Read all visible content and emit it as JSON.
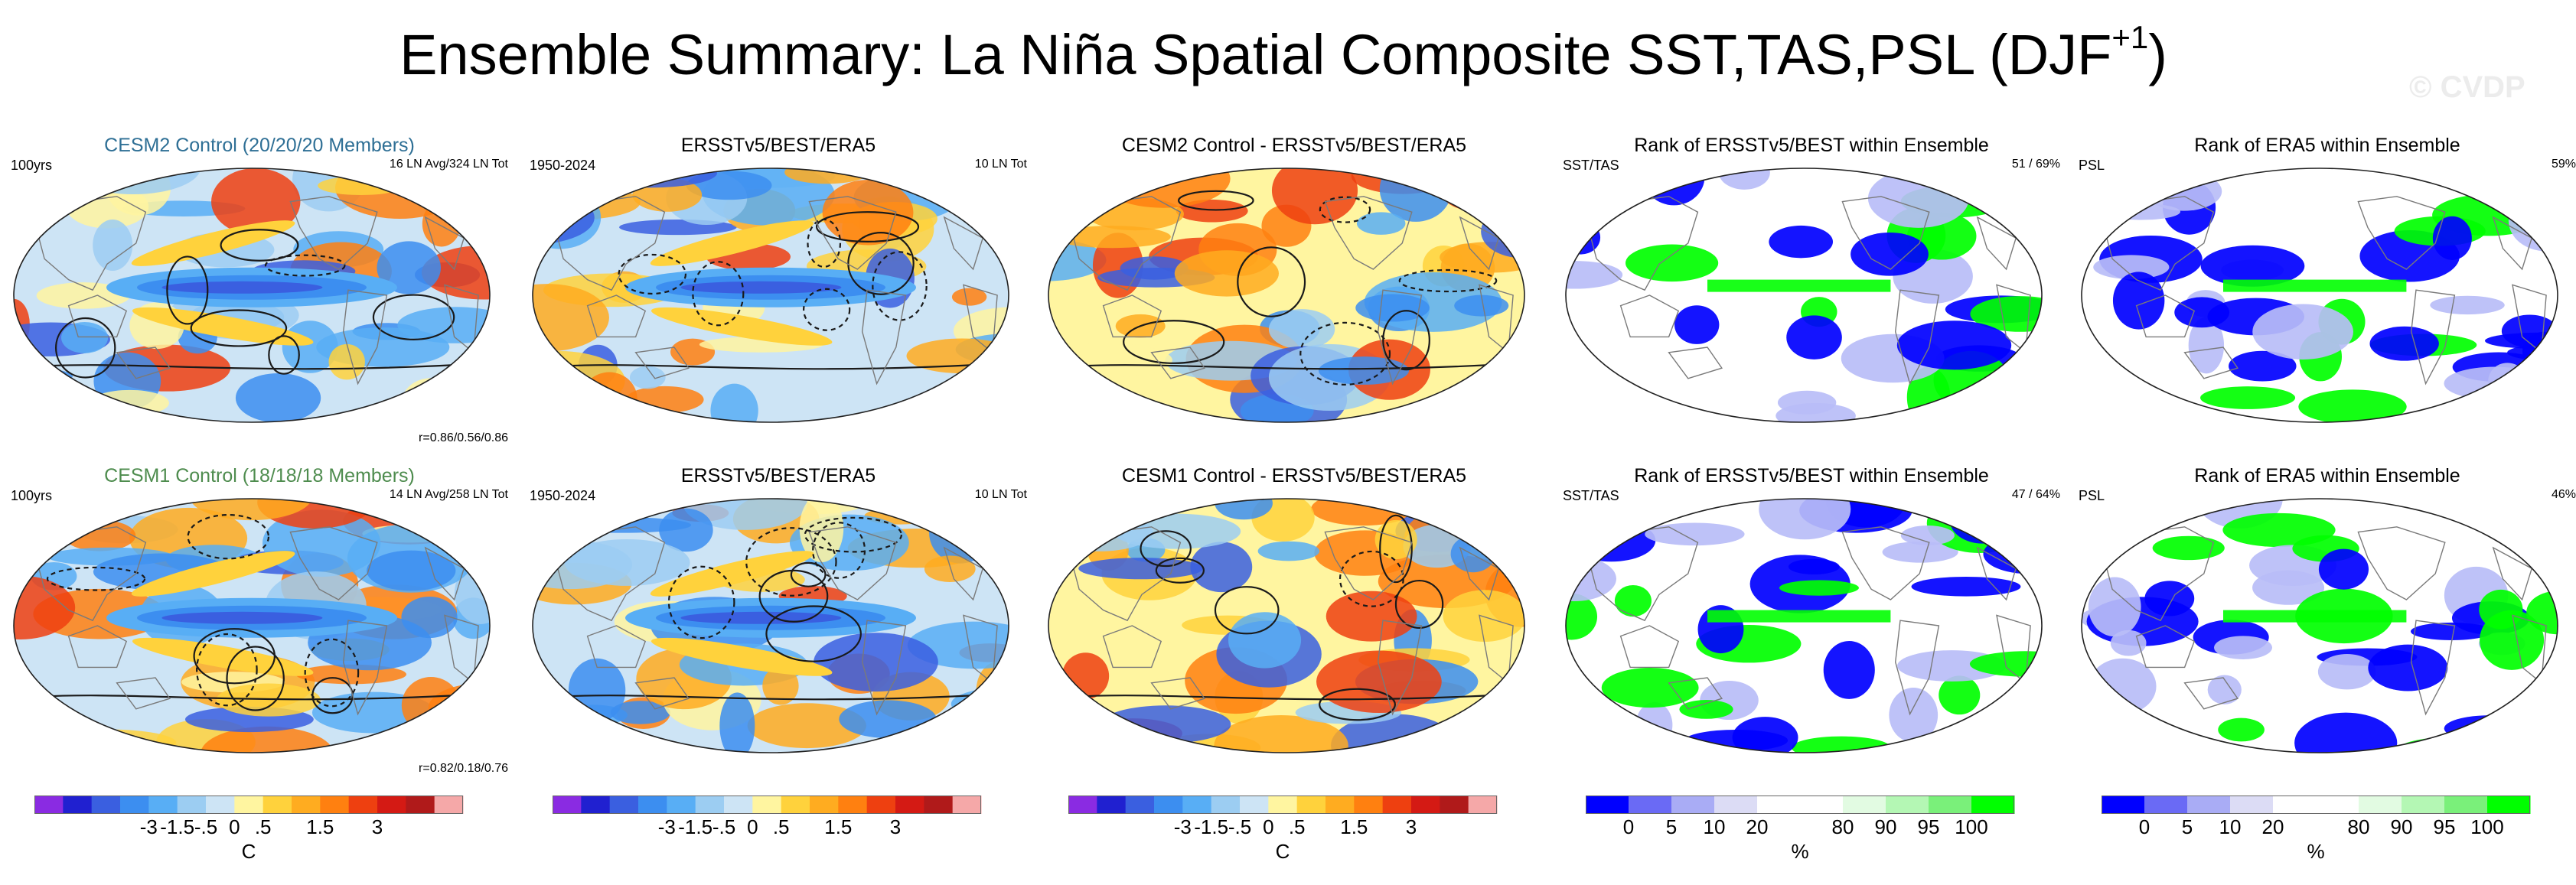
{
  "title": "Ensemble Summary: La Niña Spatial Composite SST,TAS,PSL (DJF",
  "title_superscript": "+1",
  "title_suffix": ")",
  "watermark": "© CVDP",
  "colors": {
    "ocean_base": "#a8d8f0",
    "map_outline": "#7a7a7a",
    "contour": "#1a1a1a",
    "rank_blue": "#0000ff",
    "rank_green": "#00ff00",
    "rank_lightblue": "#b8bdf7"
  },
  "rows": [
    {
      "panels": [
        {
          "title": "CESM2 Control (20/20/20 Members)",
          "left": "100yrs",
          "right": "16 LN Avg/324 LN Tot",
          "corr": "r=0.86/0.56/0.86",
          "kind": "anom"
        },
        {
          "title": "ERSSTv5/BEST/ERA5",
          "left": "1950-2024",
          "right": "10 LN Tot",
          "corr": "",
          "kind": "anom"
        },
        {
          "title": "CESM2 Control - ERSSTv5/BEST/ERA5",
          "left": "",
          "right": "",
          "corr": "",
          "kind": "diff"
        },
        {
          "title": "Rank of ERSSTv5/BEST within Ensemble",
          "left": "SST/TAS",
          "right": "51 /  69%",
          "corr": "",
          "kind": "rank"
        },
        {
          "title": "Rank of ERA5 within Ensemble",
          "left": "PSL",
          "right": "59%",
          "corr": "",
          "kind": "rank"
        }
      ]
    },
    {
      "panels": [
        {
          "title": "CESM1 Control (18/18/18 Members)",
          "left": "100yrs",
          "right": "14 LN Avg/258 LN Tot",
          "corr": "r=0.82/0.18/0.76",
          "kind": "anom"
        },
        {
          "title": "ERSSTv5/BEST/ERA5",
          "left": "1950-2024",
          "right": "10 LN Tot",
          "corr": "",
          "kind": "anom"
        },
        {
          "title": "CESM1 Control - ERSSTv5/BEST/ERA5",
          "left": "",
          "right": "",
          "corr": "",
          "kind": "diff"
        },
        {
          "title": "Rank of ERSSTv5/BEST within Ensemble",
          "left": "SST/TAS",
          "right": "47 /  64%",
          "corr": "",
          "kind": "rank"
        },
        {
          "title": "Rank of ERA5 within Ensemble",
          "left": "PSL",
          "right": "46%",
          "corr": "",
          "kind": "rank"
        }
      ]
    }
  ],
  "colorbars": [
    {
      "ticks": [
        "-3",
        "-1.5",
        "-.5",
        "0",
        ".5",
        "1.5",
        "3"
      ],
      "unit": "C",
      "colors": [
        "#8a2be2",
        "#2020d0",
        "#3a5fe0",
        "#3c8ef0",
        "#58aef5",
        "#9ccdf2",
        "#cde4f5",
        "#fff5a0",
        "#ffd23c",
        "#ffac20",
        "#ff8010",
        "#ee4010",
        "#d41a14",
        "#b01a1a",
        "#f5a8a8"
      ]
    },
    {
      "ticks": [
        "-3",
        "-1.5",
        "-.5",
        "0",
        ".5",
        "1.5",
        "3"
      ],
      "unit": "",
      "colors": [
        "#8a2be2",
        "#2020d0",
        "#3a5fe0",
        "#3c8ef0",
        "#58aef5",
        "#9ccdf2",
        "#cde4f5",
        "#fff5a0",
        "#ffd23c",
        "#ffac20",
        "#ff8010",
        "#ee4010",
        "#d41a14",
        "#b01a1a",
        "#f5a8a8"
      ]
    },
    {
      "ticks": [
        "-3",
        "-1.5",
        "-.5",
        "0",
        ".5",
        "1.5",
        "3"
      ],
      "unit": "C",
      "colors": [
        "#8a2be2",
        "#2020d0",
        "#3a5fe0",
        "#3c8ef0",
        "#58aef5",
        "#9ccdf2",
        "#cde4f5",
        "#fff5a0",
        "#ffd23c",
        "#ffac20",
        "#ff8010",
        "#ee4010",
        "#d41a14",
        "#b01a1a",
        "#f5a8a8"
      ]
    },
    {
      "ticks": [
        "0",
        "5",
        "10",
        "20",
        "80",
        "90",
        "95",
        "100"
      ],
      "unit": "%",
      "colors": [
        "#0000ff",
        "#6a6af5",
        "#a9acf5",
        "#dcdcf5",
        "#ffffff",
        "#ffffff",
        "#e2fbe2",
        "#b4f7b4",
        "#7af07a",
        "#00ff00"
      ]
    },
    {
      "ticks": [
        "0",
        "5",
        "10",
        "20",
        "80",
        "90",
        "95",
        "100"
      ],
      "unit": "%",
      "colors": [
        "#0000ff",
        "#6a6af5",
        "#a9acf5",
        "#dcdcf5",
        "#ffffff",
        "#ffffff",
        "#e2fbe2",
        "#b4f7b4",
        "#7af07a",
        "#00ff00"
      ]
    }
  ],
  "chart_data": {
    "type": "heatmap",
    "title": "Ensemble Summary: La Niña Spatial Composite SST,TAS,PSL (DJF+1)",
    "projection": "Robinson (global, Pacific-centered)",
    "panels": [
      {
        "row": 1,
        "col": 1,
        "label": "CESM2 Control (20/20/20 Members)",
        "period": "100yrs",
        "events": "16 LN Avg/324 LN Tot",
        "pattern_correlation": [
          0.86,
          0.56,
          0.86
        ],
        "variable": "SST/TAS anomaly (C) with PSL contours"
      },
      {
        "row": 1,
        "col": 2,
        "label": "ERSSTv5/BEST/ERA5",
        "period": "1950-2024",
        "events": "10 LN Tot",
        "variable": "SST/TAS anomaly (C) with PSL contours"
      },
      {
        "row": 1,
        "col": 3,
        "label": "CESM2 Control - ERSSTv5/BEST/ERA5",
        "variable": "difference (C)"
      },
      {
        "row": 1,
        "col": 4,
        "label": "Rank of ERSSTv5/BEST within Ensemble",
        "field": "SST/TAS",
        "summary": "51 /  69%"
      },
      {
        "row": 1,
        "col": 5,
        "label": "Rank of ERA5 within Ensemble",
        "field": "PSL",
        "summary": "59%"
      },
      {
        "row": 2,
        "col": 1,
        "label": "CESM1 Control (18/18/18 Members)",
        "period": "100yrs",
        "events": "14 LN Avg/258 LN Tot",
        "pattern_correlation": [
          0.82,
          0.18,
          0.76
        ],
        "variable": "SST/TAS anomaly (C) with PSL contours"
      },
      {
        "row": 2,
        "col": 2,
        "label": "ERSSTv5/BEST/ERA5",
        "period": "1950-2024",
        "events": "10 LN Tot",
        "variable": "SST/TAS anomaly (C) with PSL contours"
      },
      {
        "row": 2,
        "col": 3,
        "label": "CESM1 Control - ERSSTv5/BEST/ERA5",
        "variable": "difference (C)"
      },
      {
        "row": 2,
        "col": 4,
        "label": "Rank of ERSSTv5/BEST within Ensemble",
        "field": "SST/TAS",
        "summary": "47 /  64%"
      },
      {
        "row": 2,
        "col": 5,
        "label": "Rank of ERA5 within Ensemble",
        "field": "PSL",
        "summary": "46%"
      }
    ],
    "colorbar_anomaly": {
      "ticks": [
        -3,
        -1.5,
        -0.5,
        0,
        0.5,
        1.5,
        3
      ],
      "unit": "C"
    },
    "colorbar_rank": {
      "ticks": [
        0,
        5,
        10,
        20,
        80,
        90,
        95,
        100
      ],
      "unit": "%"
    }
  }
}
